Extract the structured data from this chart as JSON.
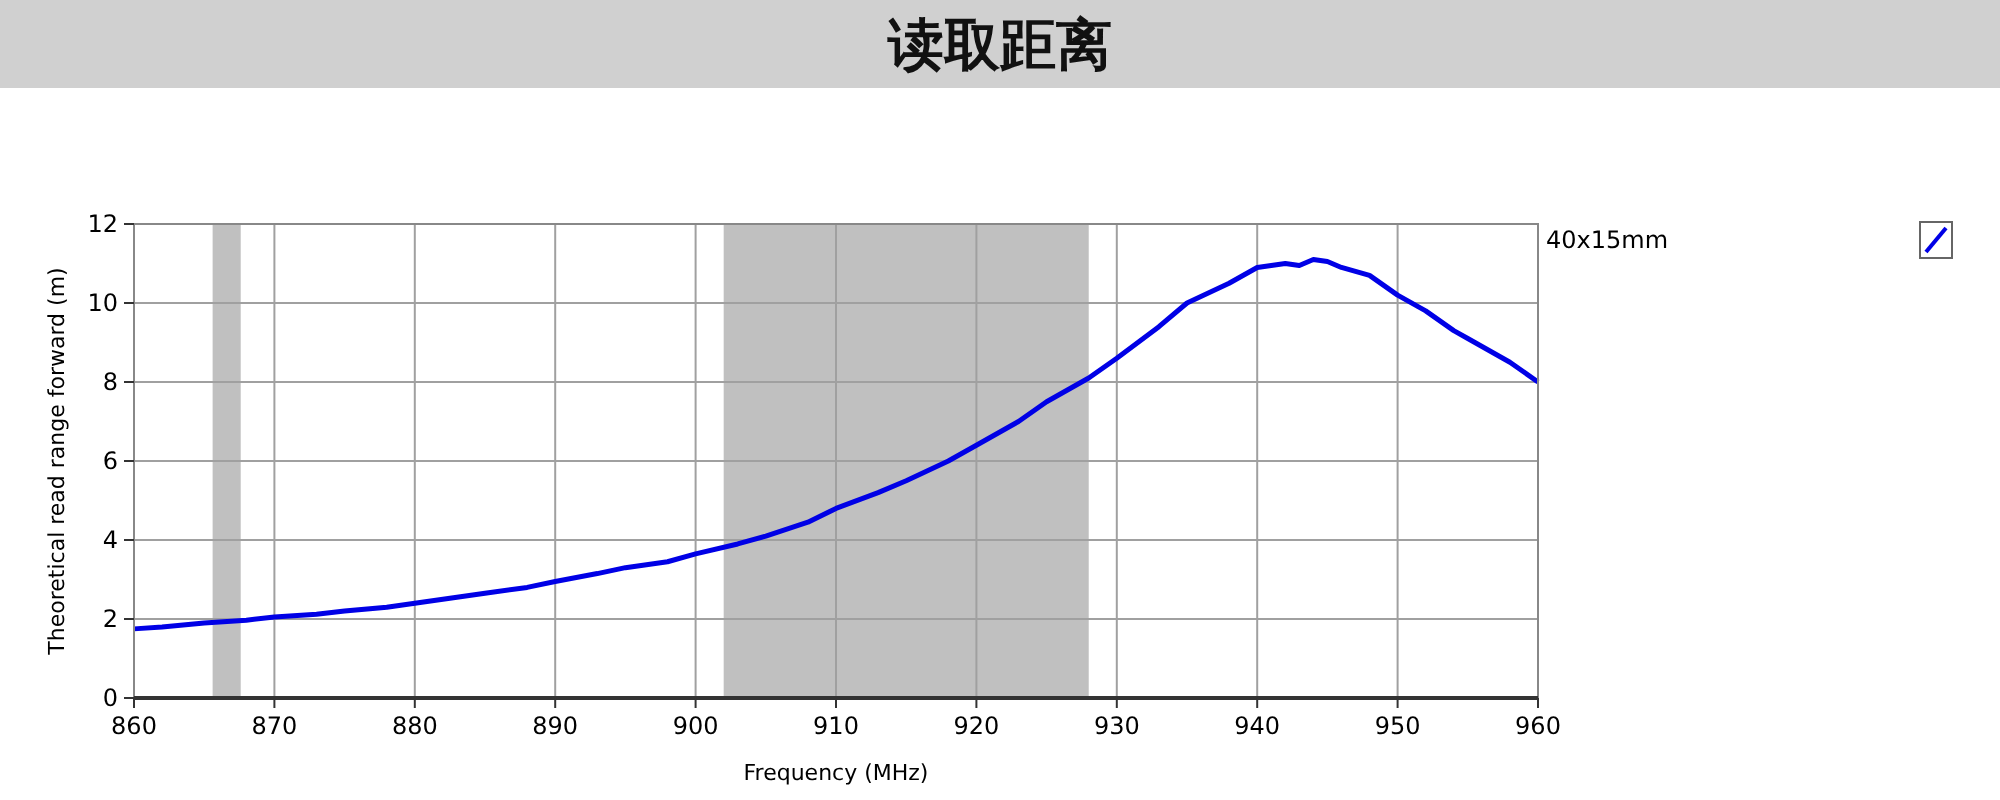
{
  "chart_data": {
    "type": "line",
    "title": "读取距离",
    "xlabel": "Frequency (MHz)",
    "ylabel": "Theoretical read range forward (m)",
    "x": [
      860,
      862,
      865,
      868,
      870,
      873,
      875,
      878,
      880,
      883,
      885,
      888,
      890,
      893,
      895,
      898,
      900,
      903,
      905,
      908,
      910,
      913,
      915,
      918,
      920,
      923,
      925,
      928,
      930,
      933,
      935,
      938,
      940,
      941,
      942,
      943,
      944,
      945,
      946,
      948,
      950,
      952,
      954,
      955,
      958,
      960
    ],
    "series": [
      {
        "name": "40x15mm",
        "color": "#0000e6",
        "values": [
          1.75,
          1.8,
          1.9,
          1.97,
          2.05,
          2.12,
          2.2,
          2.3,
          2.4,
          2.55,
          2.65,
          2.8,
          2.95,
          3.15,
          3.3,
          3.45,
          3.65,
          3.9,
          4.1,
          4.45,
          4.8,
          5.2,
          5.5,
          6.0,
          6.4,
          7.0,
          7.5,
          8.1,
          8.6,
          9.4,
          10.0,
          10.5,
          10.9,
          10.95,
          11.0,
          10.95,
          11.1,
          11.05,
          10.9,
          10.7,
          10.2,
          9.8,
          9.3,
          9.1,
          8.5,
          8.0
        ]
      }
    ],
    "xlim": [
      860,
      960
    ],
    "xticks": [
      860,
      870,
      880,
      890,
      900,
      910,
      920,
      930,
      940,
      950,
      960
    ],
    "ylim": [
      0,
      12
    ],
    "yticks": [
      0,
      2,
      4,
      6,
      8,
      10,
      12
    ],
    "bands": [
      {
        "axis": "x",
        "from": 865.6,
        "to": 867.6,
        "color": "#c0c0c0"
      },
      {
        "axis": "x",
        "from": 902,
        "to": 928,
        "color": "#c0c0c0"
      }
    ],
    "grid": true,
    "legend": "right",
    "marker": "none",
    "line_style": "solid"
  }
}
